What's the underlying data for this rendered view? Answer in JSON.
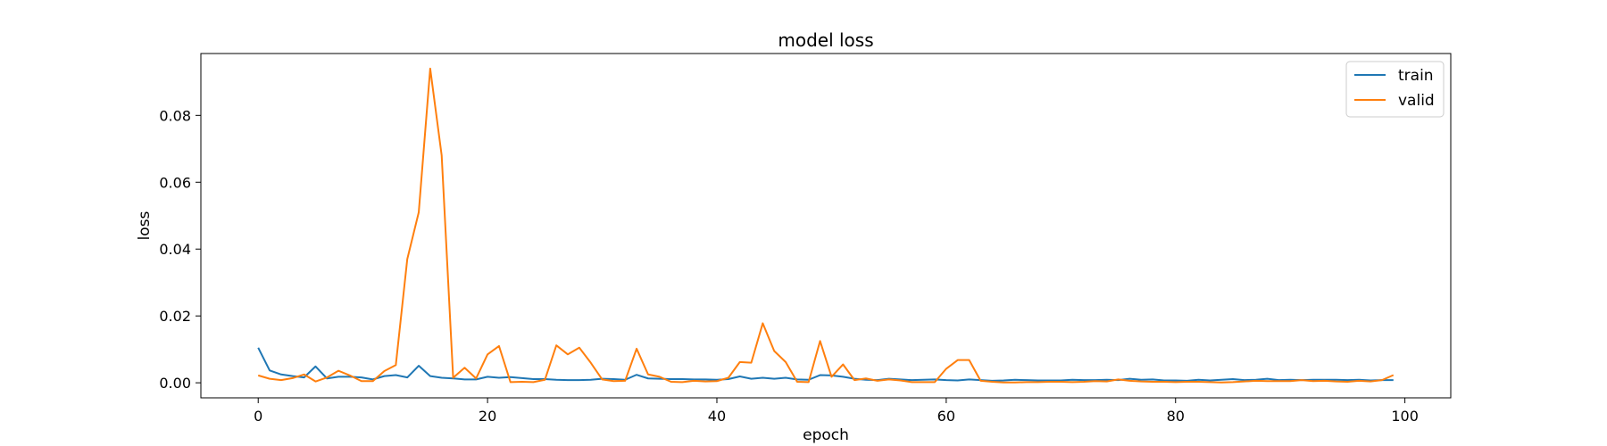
{
  "chart_data": {
    "type": "line",
    "title": "model loss",
    "xlabel": "epoch",
    "ylabel": "loss",
    "xlim": [
      -5,
      104
    ],
    "ylim": [
      -0.0045,
      0.0985
    ],
    "xticks": [
      0,
      20,
      40,
      60,
      80,
      100
    ],
    "yticks": [
      0.0,
      0.02,
      0.04,
      0.06,
      0.08
    ],
    "xtick_labels": [
      "0",
      "20",
      "40",
      "60",
      "80",
      "100"
    ],
    "ytick_labels": [
      "0.00",
      "0.02",
      "0.04",
      "0.06",
      "0.08"
    ],
    "grid": false,
    "legend_position": "top-right",
    "series": [
      {
        "name": "train",
        "color": "#1f77b4",
        "x": [
          0,
          1,
          2,
          3,
          4,
          5,
          6,
          7,
          8,
          9,
          10,
          11,
          12,
          13,
          14,
          15,
          16,
          17,
          18,
          19,
          20,
          21,
          22,
          23,
          24,
          25,
          26,
          27,
          28,
          29,
          30,
          31,
          32,
          33,
          34,
          35,
          36,
          37,
          38,
          39,
          40,
          41,
          42,
          43,
          44,
          45,
          46,
          47,
          48,
          49,
          50,
          51,
          52,
          53,
          54,
          55,
          56,
          57,
          58,
          59,
          60,
          61,
          62,
          63,
          64,
          65,
          66,
          67,
          68,
          69,
          70,
          71,
          72,
          73,
          74,
          75,
          76,
          77,
          78,
          79,
          80,
          81,
          82,
          83,
          84,
          85,
          86,
          87,
          88,
          89,
          90,
          91,
          92,
          93,
          94,
          95,
          96,
          97,
          98,
          99
        ],
        "values": [
          0.0105,
          0.0037,
          0.0025,
          0.002,
          0.0016,
          0.0049,
          0.0013,
          0.0018,
          0.0018,
          0.0016,
          0.001,
          0.002,
          0.0023,
          0.0016,
          0.0051,
          0.002,
          0.0015,
          0.0013,
          0.001,
          0.001,
          0.0018,
          0.0015,
          0.0017,
          0.0014,
          0.0011,
          0.0011,
          0.0009,
          0.0008,
          0.0008,
          0.0009,
          0.0012,
          0.0011,
          0.0009,
          0.0024,
          0.0013,
          0.0012,
          0.0011,
          0.0011,
          0.001,
          0.001,
          0.0009,
          0.0011,
          0.0019,
          0.0012,
          0.0015,
          0.0012,
          0.0015,
          0.001,
          0.0009,
          0.0023,
          0.0022,
          0.0018,
          0.0012,
          0.0009,
          0.0008,
          0.0012,
          0.001,
          0.0008,
          0.0009,
          0.001,
          0.0008,
          0.0007,
          0.001,
          0.0008,
          0.0006,
          0.0007,
          0.0009,
          0.0008,
          0.0007,
          0.0007,
          0.0007,
          0.0009,
          0.0008,
          0.0008,
          0.0009,
          0.0008,
          0.0012,
          0.0009,
          0.001,
          0.0007,
          0.0007,
          0.0006,
          0.0009,
          0.0007,
          0.0009,
          0.0011,
          0.0008,
          0.0009,
          0.0012,
          0.0008,
          0.0009,
          0.0008,
          0.0009,
          0.0009,
          0.0009,
          0.0008,
          0.0009,
          0.0007,
          0.0008,
          0.0008
        ]
      },
      {
        "name": "valid",
        "color": "#ff7f0e",
        "x": [
          0,
          1,
          2,
          3,
          4,
          5,
          6,
          7,
          8,
          9,
          10,
          11,
          12,
          13,
          14,
          15,
          16,
          17,
          18,
          19,
          20,
          21,
          22,
          23,
          24,
          25,
          26,
          27,
          28,
          29,
          30,
          31,
          32,
          33,
          34,
          35,
          36,
          37,
          38,
          39,
          40,
          41,
          42,
          43,
          44,
          45,
          46,
          47,
          48,
          49,
          50,
          51,
          52,
          53,
          54,
          55,
          56,
          57,
          58,
          59,
          60,
          61,
          62,
          63,
          64,
          65,
          66,
          67,
          68,
          69,
          70,
          71,
          72,
          73,
          74,
          75,
          76,
          77,
          78,
          79,
          80,
          81,
          82,
          83,
          84,
          85,
          86,
          87,
          88,
          89,
          90,
          91,
          92,
          93,
          94,
          95,
          96,
          97,
          98,
          99
        ],
        "values": [
          0.0022,
          0.0012,
          0.0008,
          0.0014,
          0.0025,
          0.0004,
          0.0016,
          0.0036,
          0.0022,
          0.0005,
          0.0005,
          0.0035,
          0.0053,
          0.037,
          0.051,
          0.094,
          0.068,
          0.0015,
          0.0045,
          0.0013,
          0.0085,
          0.011,
          0.0002,
          0.0003,
          0.0002,
          0.0009,
          0.0112,
          0.0085,
          0.0105,
          0.006,
          0.001,
          0.0005,
          0.0006,
          0.0102,
          0.0025,
          0.0018,
          0.0003,
          0.0002,
          0.0006,
          0.0004,
          0.0005,
          0.0015,
          0.0062,
          0.006,
          0.0178,
          0.0095,
          0.0062,
          0.0003,
          0.0002,
          0.0125,
          0.0018,
          0.0055,
          0.0008,
          0.0013,
          0.0006,
          0.001,
          0.0007,
          0.0002,
          0.0002,
          0.0002,
          0.0042,
          0.0068,
          0.0068,
          0.0006,
          0.0003,
          0.0001,
          0.0001,
          0.0002,
          0.0002,
          0.0003,
          0.0003,
          0.0002,
          0.0003,
          0.0005,
          0.0004,
          0.001,
          0.0006,
          0.0004,
          0.0003,
          0.0003,
          0.0002,
          0.0003,
          0.0003,
          0.0002,
          0.0001,
          0.0002,
          0.0004,
          0.0006,
          0.0005,
          0.0005,
          0.0005,
          0.0008,
          0.0005,
          0.0006,
          0.0004,
          0.0003,
          0.0006,
          0.0004,
          0.0008,
          0.0023
        ]
      }
    ]
  }
}
